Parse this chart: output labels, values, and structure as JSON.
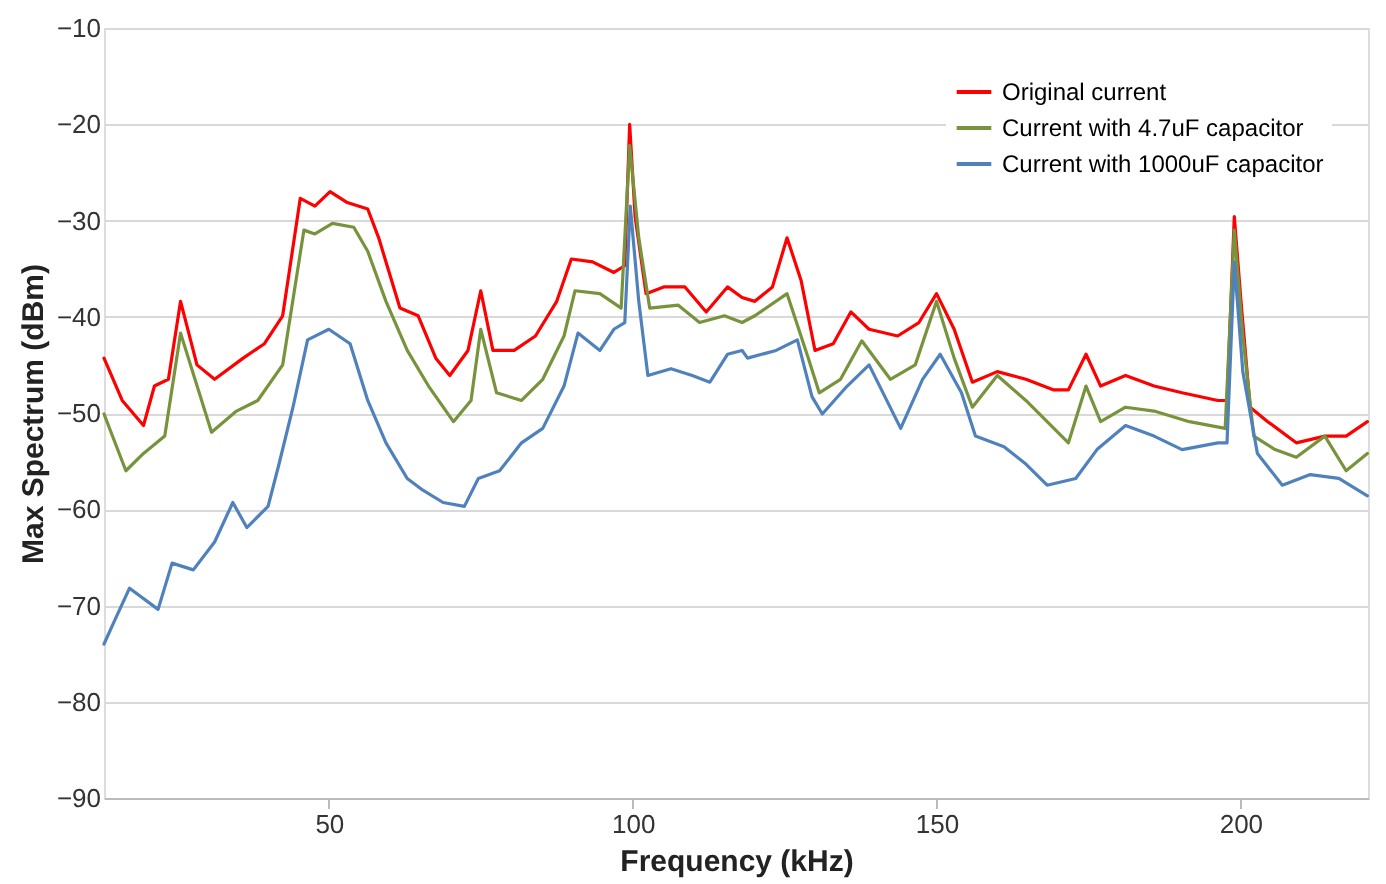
{
  "chart_data": {
    "type": "line",
    "xlabel": "Frequency (kHz)",
    "ylabel": "Max Spectrum (dBm)",
    "xlim": [
      13,
      221
    ],
    "xticks": [
      50,
      100,
      150,
      200
    ],
    "ylim": [
      -90,
      -10
    ],
    "yticks": [
      -90,
      -80,
      -70,
      -60,
      -50,
      -40,
      -30,
      -20,
      -10
    ],
    "grid": "y",
    "legend": "top right",
    "marker": "none",
    "line_style": "solid",
    "series": [
      {
        "name": "Original current",
        "color": "#ff0000",
        "x": [
          13,
          16,
          19.5,
          21.3,
          23.6,
          25.6,
          28.3,
          31.2,
          35.9,
          39.4,
          42.4,
          45.3,
          47.7,
          50.2,
          52.9,
          56.4,
          58.2,
          61.7,
          64.7,
          67.6,
          69.9,
          72.9,
          75,
          77,
          80.5,
          84,
          87.5,
          89.9,
          93.4,
          96.9,
          98.7,
          99.5,
          100.4,
          102.2,
          105.1,
          108.6,
          112.1,
          115.6,
          118,
          120.1,
          123,
          125.4,
          127.7,
          130,
          133,
          135.9,
          138.9,
          143.6,
          147.1,
          150,
          152.9,
          155.9,
          160,
          164.7,
          169.3,
          171.7,
          174.6,
          177,
          181.1,
          185.8,
          190.4,
          196.3,
          197.8,
          199,
          200.1,
          201.6,
          204.5,
          209.2,
          213.9,
          217.4,
          220.9
        ],
        "values": [
          -44.3,
          -48.7,
          -51.3,
          -47.2,
          -46.5,
          -38.4,
          -45,
          -46.5,
          -44.3,
          -42.8,
          -39.9,
          -27.7,
          -28.5,
          -27,
          -28.1,
          -28.8,
          -31.8,
          -39.1,
          -39.9,
          -44.3,
          -46.1,
          -43.5,
          -37.3,
          -43.5,
          -43.5,
          -42,
          -38.4,
          -34,
          -34.3,
          -35.4,
          -34.7,
          -20,
          -29.6,
          -37.6,
          -36.9,
          -36.9,
          -39.5,
          -36.9,
          -38,
          -38.4,
          -36.9,
          -31.8,
          -36.2,
          -43.5,
          -42.8,
          -39.5,
          -41.3,
          -42,
          -40.6,
          -37.6,
          -41.3,
          -46.8,
          -45.7,
          -46.5,
          -47.6,
          -47.6,
          -43.9,
          -47.2,
          -46.1,
          -47.2,
          -47.9,
          -48.7,
          -48.7,
          -29.6,
          -38.4,
          -49.4,
          -50.9,
          -53.1,
          -52.4,
          -52.4,
          -50.9
        ]
      },
      {
        "name": "Current with 4.7uF capacitor",
        "color": "#77933c",
        "x": [
          13,
          16.6,
          19.5,
          23,
          25.6,
          30.7,
          34.8,
          38.3,
          42.4,
          45.9,
          47.7,
          50.6,
          54.1,
          56.4,
          59.4,
          62.9,
          66.4,
          70.5,
          73.4,
          75,
          77.6,
          81.7,
          85.2,
          88.7,
          90.5,
          94.6,
          98.1,
          99.5,
          101,
          102.8,
          107.5,
          111,
          115.1,
          118,
          120.1,
          125.4,
          128.9,
          130.7,
          134.2,
          137.7,
          142.4,
          146.5,
          150,
          152.9,
          155.9,
          160,
          164.7,
          171.7,
          174.6,
          177,
          181.1,
          185.8,
          191.6,
          197.5,
          199,
          200.4,
          202.2,
          205.7,
          209.2,
          213.9,
          217.4,
          220.9
        ],
        "values": [
          -50.1,
          -56,
          -54.2,
          -52.4,
          -41.7,
          -52,
          -49.8,
          -48.7,
          -45,
          -31,
          -31.4,
          -30.3,
          -30.7,
          -33.2,
          -38.4,
          -43.5,
          -47.2,
          -50.9,
          -48.7,
          -41.3,
          -47.9,
          -48.7,
          -46.5,
          -42,
          -37.3,
          -37.6,
          -39.1,
          -22.2,
          -31.8,
          -39.1,
          -38.8,
          -40.6,
          -39.9,
          -40.6,
          -39.9,
          -37.6,
          -44.3,
          -47.9,
          -46.5,
          -42.5,
          -46.5,
          -45,
          -38.4,
          -44.3,
          -49.4,
          -46.1,
          -48.7,
          -53.1,
          -47.2,
          -50.9,
          -49.4,
          -49.8,
          -50.9,
          -51.6,
          -31,
          -42,
          -52.4,
          -53.8,
          -54.6,
          -52.4,
          -56,
          -54.2
        ]
      },
      {
        "name": "Current with 1000uF capacitor",
        "color": "#4f81bd",
        "x": [
          13,
          14.8,
          17.2,
          21.9,
          24.2,
          27.7,
          31.2,
          34.2,
          36.5,
          40,
          41.8,
          44.1,
          46.5,
          50,
          53.5,
          56.4,
          59.4,
          62.9,
          65.2,
          68.8,
          72.3,
          74.6,
          78.1,
          81.7,
          85.2,
          88.7,
          91,
          94.6,
          96.9,
          98.7,
          99.6,
          101,
          102.5,
          106.3,
          109.8,
          112.7,
          115.6,
          118,
          118.9,
          123.6,
          127.1,
          129.5,
          131.2,
          135.3,
          138.9,
          144.1,
          147.7,
          150.6,
          154.1,
          156.4,
          161.1,
          164.7,
          168.2,
          172.9,
          176.4,
          181.1,
          185.8,
          190.4,
          196.3,
          197.8,
          199,
          200.4,
          202.8,
          206.9,
          211.5,
          216.2,
          220.9
        ],
        "values": [
          -74,
          -71.5,
          -68.2,
          -70.4,
          -65.6,
          -66.3,
          -63.4,
          -59.3,
          -61.9,
          -59.7,
          -55.3,
          -49.4,
          -42.4,
          -41.3,
          -42.8,
          -48.7,
          -53.1,
          -56.8,
          -57.9,
          -59.3,
          -59.7,
          -56.8,
          -56,
          -53.1,
          -51.6,
          -47.2,
          -41.7,
          -43.5,
          -41.3,
          -40.6,
          -28.5,
          -38.4,
          -46.1,
          -45.4,
          -46.1,
          -46.8,
          -43.9,
          -43.5,
          -44.3,
          -43.5,
          -42.4,
          -48.3,
          -50.1,
          -47.2,
          -45,
          -51.6,
          -46.5,
          -43.9,
          -47.9,
          -52.4,
          -53.5,
          -55.3,
          -57.5,
          -56.8,
          -53.8,
          -51.3,
          -52.4,
          -53.8,
          -53.1,
          -53.1,
          -34.3,
          -45.7,
          -54.2,
          -57.5,
          -56.4,
          -56.8,
          -58.6
        ]
      }
    ]
  }
}
